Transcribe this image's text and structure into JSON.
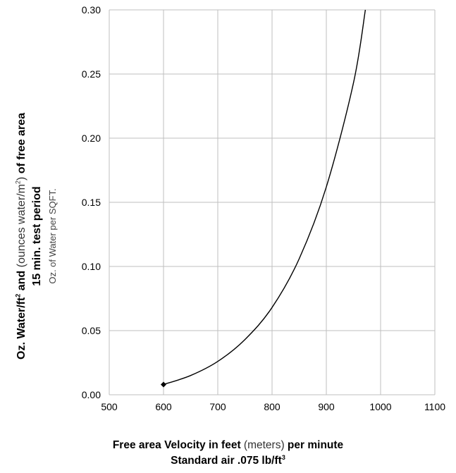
{
  "chart_data": {
    "type": "line",
    "x_ticks": [
      "500",
      "600",
      "700",
      "800",
      "900",
      "1000",
      "1100"
    ],
    "y_ticks": [
      "0.00",
      "0.05",
      "0.10",
      "0.15",
      "0.20",
      "0.25",
      "0.30"
    ],
    "xlim": [
      500,
      1100
    ],
    "ylim": [
      0,
      0.3
    ],
    "grid": true,
    "series": [
      {
        "x": [
          600,
          650,
          700,
          750,
          800,
          850,
          900,
          950,
          972
        ],
        "y": [
          0.008,
          0.015,
          0.026,
          0.043,
          0.068,
          0.106,
          0.162,
          0.243,
          0.3
        ],
        "start_marker": "diamond",
        "color": "#000000"
      }
    ],
    "xlabel": {
      "bold1": "Free area Velocity in feet",
      "normal": " (meters)",
      "bold2": " per minute",
      "line2": "Standard air .075 lb/ft",
      "line2_sup": "3"
    },
    "ylabel": {
      "part1": "Oz. Water/ft",
      "part1_sup": "2",
      "part2": " and ",
      "part3": "(ounces water/m",
      "part3_sup": "2",
      "part4": ")",
      "part5": " of free area",
      "line2": "15 min. test period",
      "line3": "Oz. of Water per SQFT."
    }
  }
}
